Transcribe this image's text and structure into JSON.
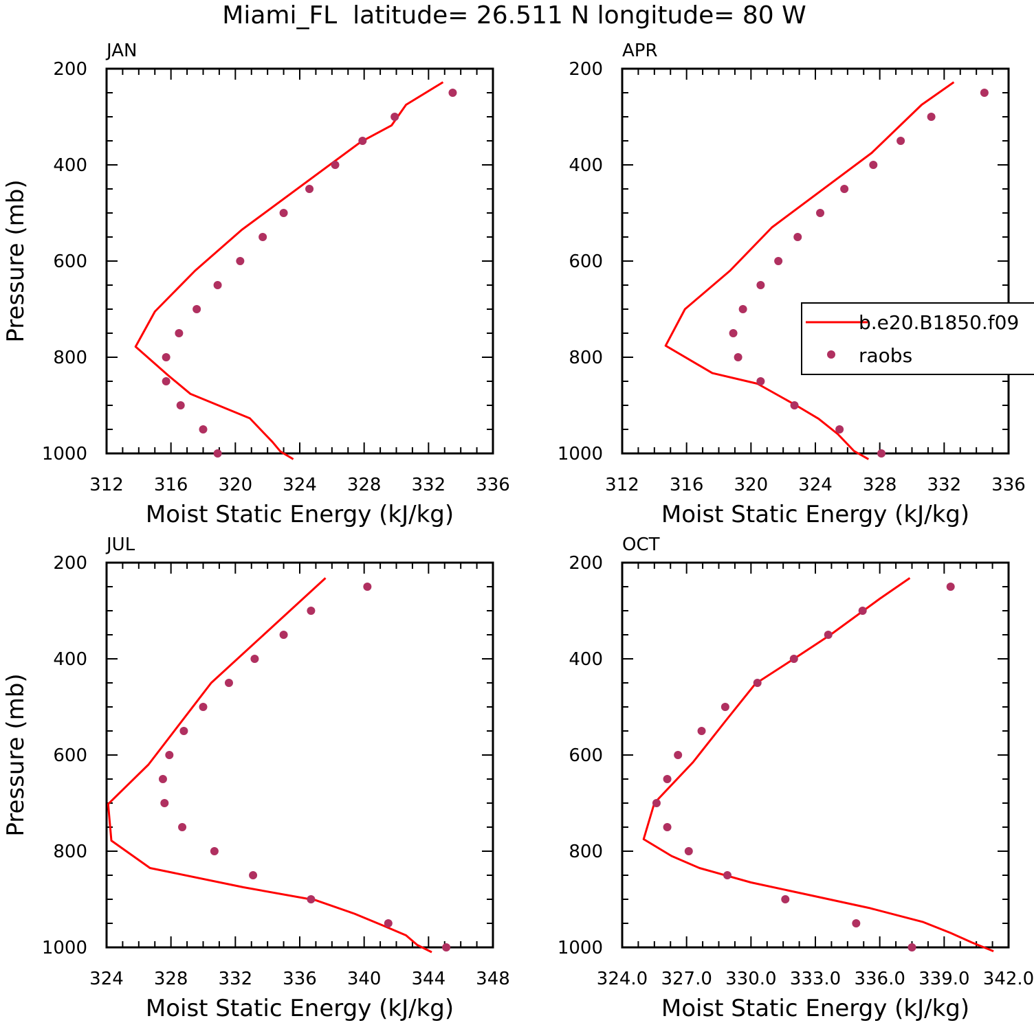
{
  "title": "Miami_FL  latitude= 26.511 N longitude= 80 W",
  "colors": {
    "model": "#ff0000",
    "obs": "#b03060",
    "axis": "#000000"
  },
  "legend": {
    "model_label": "b.e20.B1850.f09",
    "obs_label": "raobs"
  },
  "chart_data": [
    {
      "type": "line",
      "panel": "JAN",
      "xlabel": "Moist Static Energy (kJ/kg)",
      "ylabel": "Pressure (mb)",
      "xlim": [
        312,
        336
      ],
      "ylim": [
        1000,
        200
      ],
      "xticks": [
        312,
        316,
        320,
        324,
        328,
        332,
        336
      ],
      "xtick_labels": [
        "312",
        "316",
        "320",
        "324",
        "328",
        "332",
        "336"
      ],
      "yticks": [
        200,
        400,
        600,
        800,
        1000
      ],
      "ytick_labels": [
        "200",
        "400",
        "600",
        "800",
        "1000"
      ],
      "series": [
        {
          "name": "b.e20.B1850.f09",
          "kind": "line",
          "x": [
            332.9,
            330.6,
            329.7,
            327.8,
            320.4,
            317.5,
            315.0,
            313.8,
            315.8,
            317.2,
            320.9,
            321.7,
            322.3,
            322.8,
            323.6
          ],
          "y": [
            228,
            275,
            318,
            352,
            535,
            620,
            705,
            778,
            837,
            876,
            927,
            955,
            976,
            996,
            1012
          ]
        },
        {
          "name": "raobs",
          "kind": "scatter",
          "x": [
            333.5,
            329.9,
            327.9,
            326.2,
            324.6,
            323.0,
            321.7,
            320.3,
            318.9,
            317.6,
            316.5,
            315.7,
            315.7,
            316.6,
            318.0,
            318.9
          ],
          "y": [
            250,
            300,
            350,
            400,
            450,
            500,
            550,
            600,
            650,
            700,
            750,
            800,
            850,
            900,
            950,
            1000
          ]
        }
      ]
    },
    {
      "type": "line",
      "panel": "APR",
      "xlabel": "Moist Static Energy (kJ/kg)",
      "ylabel": "",
      "xlim": [
        312,
        336
      ],
      "ylim": [
        1000,
        200
      ],
      "xticks": [
        312,
        316,
        320,
        324,
        328,
        332,
        336
      ],
      "xtick_labels": [
        "312",
        "316",
        "320",
        "324",
        "328",
        "332",
        "336"
      ],
      "yticks": [
        200,
        400,
        600,
        800,
        1000
      ],
      "ytick_labels": [
        "200",
        "400",
        "600",
        "800",
        "1000"
      ],
      "series": [
        {
          "name": "b.e20.B1850.f09",
          "kind": "line",
          "x": [
            332.6,
            330.6,
            327.5,
            321.3,
            318.7,
            315.9,
            314.7,
            317.6,
            320.4,
            322.8,
            324.2,
            325.4,
            326.4,
            327.3
          ],
          "y": [
            228,
            275,
            375,
            530,
            620,
            700,
            776,
            833,
            855,
            900,
            928,
            960,
            995,
            1012
          ]
        },
        {
          "name": "raobs",
          "kind": "scatter",
          "x": [
            334.5,
            331.2,
            329.3,
            327.6,
            325.8,
            324.3,
            322.9,
            321.7,
            320.6,
            319.5,
            318.9,
            319.2,
            320.6,
            322.7,
            325.5,
            328.1
          ],
          "y": [
            250,
            300,
            350,
            400,
            450,
            500,
            550,
            600,
            650,
            700,
            750,
            800,
            850,
            900,
            950,
            1000
          ]
        }
      ]
    },
    {
      "type": "line",
      "panel": "JUL",
      "xlabel": "Moist Static Energy (kJ/kg)",
      "ylabel": "Pressure (mb)",
      "xlim": [
        324,
        348
      ],
      "ylim": [
        1000,
        200
      ],
      "xticks": [
        324,
        328,
        332,
        336,
        340,
        344,
        348
      ],
      "xtick_labels": [
        "324",
        "328",
        "332",
        "336",
        "340",
        "344",
        "348"
      ],
      "yticks": [
        200,
        400,
        600,
        800,
        1000
      ],
      "ytick_labels": [
        "200",
        "400",
        "600",
        "800",
        "1000"
      ],
      "series": [
        {
          "name": "b.e20.B1850.f09",
          "kind": "line",
          "x": [
            337.6,
            330.5,
            326.6,
            324.1,
            324.3,
            326.7,
            332.5,
            337.0,
            339.4,
            341.2,
            342.6,
            343.3,
            344.2
          ],
          "y": [
            232,
            450,
            620,
            702,
            778,
            835,
            875,
            902,
            930,
            955,
            975,
            995,
            1010
          ]
        },
        {
          "name": "raobs",
          "kind": "scatter",
          "x": [
            340.2,
            336.7,
            335.0,
            333.2,
            331.6,
            330.0,
            328.8,
            327.9,
            327.5,
            327.6,
            328.7,
            330.7,
            333.1,
            336.7,
            341.5,
            345.1
          ],
          "y": [
            250,
            300,
            350,
            400,
            450,
            500,
            550,
            600,
            650,
            700,
            750,
            800,
            850,
            900,
            950,
            1000
          ]
        }
      ]
    },
    {
      "type": "line",
      "panel": "OCT",
      "xlabel": "Moist Static Energy (kJ/kg)",
      "ylabel": "",
      "xlim": [
        324,
        342
      ],
      "ylim": [
        1000,
        200
      ],
      "xticks": [
        324,
        327,
        330,
        333,
        336,
        339,
        342
      ],
      "xtick_labels": [
        "324.0",
        "327.0",
        "330.0",
        "333.0",
        "336.0",
        "339.0",
        "342.0"
      ],
      "yticks": [
        200,
        400,
        600,
        800,
        1000
      ],
      "ytick_labels": [
        "200",
        "400",
        "600",
        "800",
        "1000"
      ],
      "series": [
        {
          "name": "b.e20.B1850.f09",
          "kind": "line",
          "x": [
            337.4,
            336.0,
            333.7,
            332.0,
            330.2,
            328.8,
            327.3,
            325.5,
            325.0,
            326.3,
            327.6,
            330.0,
            332.6,
            335.5,
            338.0,
            339.3,
            340.3,
            341.3
          ],
          "y": [
            232,
            275,
            350,
            400,
            452,
            530,
            615,
            700,
            775,
            810,
            835,
            865,
            890,
            918,
            947,
            970,
            990,
            1008
          ]
        },
        {
          "name": "raobs",
          "kind": "scatter",
          "x": [
            339.3,
            335.2,
            333.6,
            332.0,
            330.3,
            328.8,
            327.7,
            326.6,
            326.1,
            325.6,
            326.1,
            327.1,
            328.9,
            331.6,
            334.9,
            337.5
          ],
          "y": [
            250,
            300,
            350,
            400,
            450,
            500,
            550,
            600,
            650,
            700,
            750,
            800,
            850,
            900,
            950,
            1000
          ]
        }
      ]
    }
  ]
}
